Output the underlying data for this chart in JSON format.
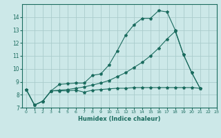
{
  "xlabel": "Humidex (Indice chaleur)",
  "bg_color": "#cce8e8",
  "grid_color": "#aacccc",
  "line_color": "#1a6b5e",
  "xlim": [
    -0.5,
    23
  ],
  "ylim": [
    7,
    15
  ],
  "yticks": [
    7,
    8,
    9,
    10,
    11,
    12,
    13,
    14
  ],
  "xticks": [
    0,
    1,
    2,
    3,
    4,
    5,
    6,
    7,
    8,
    9,
    10,
    11,
    12,
    13,
    14,
    15,
    16,
    17,
    18,
    19,
    20,
    21,
    22,
    23
  ],
  "series1_x": [
    0,
    1,
    2,
    3,
    4,
    5,
    6,
    7,
    8,
    9,
    10,
    11,
    12,
    13,
    14,
    15,
    16,
    17,
    18,
    19,
    20,
    21
  ],
  "series1_y": [
    8.4,
    7.2,
    7.5,
    8.3,
    8.8,
    8.85,
    8.9,
    8.9,
    9.5,
    9.6,
    10.3,
    11.4,
    12.6,
    13.4,
    13.9,
    13.9,
    14.5,
    14.4,
    13.0,
    11.1,
    9.7,
    8.5
  ],
  "series2_x": [
    0,
    1,
    2,
    3,
    4,
    5,
    6,
    7,
    8,
    9,
    10,
    11,
    12,
    13,
    14,
    15,
    16,
    17,
    18,
    19,
    20,
    21
  ],
  "series2_y": [
    8.4,
    7.2,
    7.5,
    8.3,
    8.3,
    8.3,
    8.35,
    8.2,
    8.35,
    8.4,
    8.45,
    8.5,
    8.5,
    8.55,
    8.55,
    8.55,
    8.55,
    8.55,
    8.55,
    8.55,
    8.55,
    8.5
  ],
  "series3_x": [
    0,
    1,
    2,
    3,
    4,
    5,
    6,
    7,
    8,
    9,
    10,
    11,
    12,
    13,
    14,
    15,
    16,
    17,
    18,
    19,
    20,
    21
  ],
  "series3_y": [
    8.4,
    7.2,
    7.5,
    8.3,
    8.35,
    8.4,
    8.5,
    8.6,
    8.75,
    8.9,
    9.1,
    9.4,
    9.7,
    10.1,
    10.5,
    11.0,
    11.6,
    12.3,
    12.9,
    11.1,
    9.7,
    8.5
  ]
}
